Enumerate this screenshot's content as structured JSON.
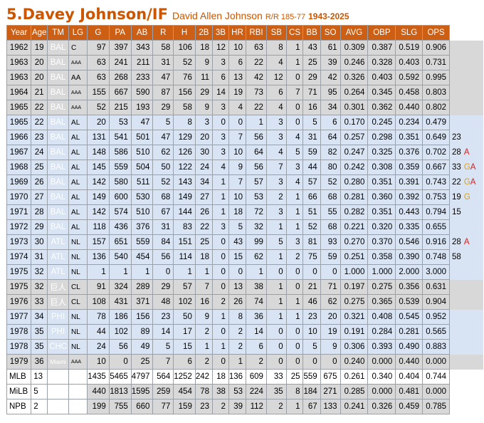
{
  "header": {
    "name": "5.Davey Johnson/IF",
    "full_name": "David Allen Johnson",
    "bats_throws": "R/R 185-77",
    "years": "1943-2025"
  },
  "columns": [
    "Year",
    "Age",
    "TM",
    "LG",
    "G",
    "PA",
    "AB",
    "R",
    "H",
    "2B",
    "3B",
    "HR",
    "RBI",
    "SB",
    "CS",
    "BB",
    "SO",
    "AVG",
    "OBP",
    "SLG",
    "OPS"
  ],
  "rows": [
    {
      "level": "milb",
      "year": "1962",
      "age": "19",
      "team": "BAL",
      "team_color": "BAL",
      "lg": "C",
      "lg_small": false,
      "stats": [
        "97",
        "397",
        "343",
        "58",
        "106",
        "18",
        "12",
        "10",
        "63",
        "8",
        "1",
        "43",
        "61",
        "0.309",
        "0.387",
        "0.519",
        "0.906"
      ],
      "note": "",
      "note_tag": "",
      "note_color": ""
    },
    {
      "level": "milb",
      "year": "1963",
      "age": "20",
      "team": "BAL",
      "team_color": "BAL",
      "lg": "AAA",
      "lg_small": true,
      "stats": [
        "63",
        "241",
        "211",
        "31",
        "52",
        "9",
        "3",
        "6",
        "22",
        "4",
        "1",
        "25",
        "39",
        "0.246",
        "0.328",
        "0.403",
        "0.731"
      ],
      "note": "",
      "note_tag": "",
      "note_color": ""
    },
    {
      "level": "milb",
      "year": "1963",
      "age": "20",
      "team": "BAL",
      "team_color": "BAL",
      "lg": "AA",
      "lg_small": false,
      "stats": [
        "63",
        "268",
        "233",
        "47",
        "76",
        "11",
        "6",
        "13",
        "42",
        "12",
        "0",
        "29",
        "42",
        "0.326",
        "0.403",
        "0.592",
        "0.995"
      ],
      "note": "",
      "note_tag": "",
      "note_color": ""
    },
    {
      "level": "milb",
      "year": "1964",
      "age": "21",
      "team": "BAL",
      "team_color": "BAL",
      "lg": "AAA",
      "lg_small": true,
      "stats": [
        "155",
        "667",
        "590",
        "87",
        "156",
        "29",
        "14",
        "19",
        "73",
        "6",
        "7",
        "71",
        "95",
        "0.264",
        "0.345",
        "0.458",
        "0.803"
      ],
      "note": "",
      "note_tag": "",
      "note_color": ""
    },
    {
      "level": "milb",
      "year": "1965",
      "age": "22",
      "team": "BAL",
      "team_color": "BAL",
      "lg": "AAA",
      "lg_small": true,
      "stats": [
        "52",
        "215",
        "193",
        "29",
        "58",
        "9",
        "3",
        "4",
        "22",
        "4",
        "0",
        "16",
        "34",
        "0.301",
        "0.362",
        "0.440",
        "0.802"
      ],
      "note": "",
      "note_tag": "",
      "note_color": ""
    },
    {
      "level": "mlb",
      "year": "1965",
      "age": "22",
      "team": "BAL",
      "team_color": "BAL",
      "lg": "AL",
      "lg_small": false,
      "stats": [
        "20",
        "53",
        "47",
        "5",
        "8",
        "3",
        "0",
        "0",
        "1",
        "3",
        "0",
        "5",
        "6",
        "0.170",
        "0.245",
        "0.234",
        "0.479"
      ],
      "note": "",
      "note_tag": "",
      "note_color": ""
    },
    {
      "level": "mlb",
      "year": "1966",
      "age": "23",
      "team": "BAL",
      "team_color": "BAL",
      "lg": "AL",
      "lg_small": false,
      "stats": [
        "131",
        "541",
        "501",
        "47",
        "129",
        "20",
        "3",
        "7",
        "56",
        "3",
        "4",
        "31",
        "64",
        "0.257",
        "0.298",
        "0.351",
        "0.649"
      ],
      "note": "23",
      "note_tag": "",
      "note_color": ""
    },
    {
      "level": "mlb",
      "year": "1967",
      "age": "24",
      "team": "BAL",
      "team_color": "BAL",
      "lg": "AL",
      "lg_small": false,
      "stats": [
        "148",
        "586",
        "510",
        "62",
        "126",
        "30",
        "3",
        "10",
        "64",
        "4",
        "5",
        "59",
        "82",
        "0.247",
        "0.325",
        "0.376",
        "0.702"
      ],
      "note": "28",
      "note_tag": "A",
      "note_color": "red"
    },
    {
      "level": "mlb",
      "year": "1968",
      "age": "25",
      "team": "BAL",
      "team_color": "BAL",
      "lg": "AL",
      "lg_small": false,
      "stats": [
        "145",
        "559",
        "504",
        "50",
        "122",
        "24",
        "4",
        "9",
        "56",
        "7",
        "3",
        "44",
        "80",
        "0.242",
        "0.308",
        "0.359",
        "0.667"
      ],
      "note": "33",
      "note_tag": "GA",
      "note_color": "mix"
    },
    {
      "level": "mlb",
      "year": "1969",
      "age": "26",
      "team": "BAL",
      "team_color": "BAL",
      "lg": "AL",
      "lg_small": false,
      "stats": [
        "142",
        "580",
        "511",
        "52",
        "143",
        "34",
        "1",
        "7",
        "57",
        "3",
        "4",
        "57",
        "52",
        "0.280",
        "0.351",
        "0.391",
        "0.743"
      ],
      "note": "22",
      "note_tag": "GA",
      "note_color": "mix"
    },
    {
      "level": "mlb",
      "year": "1970",
      "age": "27",
      "team": "BAL",
      "team_color": "BAL",
      "lg": "AL",
      "lg_small": false,
      "stats": [
        "149",
        "600",
        "530",
        "68",
        "149",
        "27",
        "1",
        "10",
        "53",
        "2",
        "1",
        "66",
        "68",
        "0.281",
        "0.360",
        "0.392",
        "0.753"
      ],
      "note": "19",
      "note_tag": "G",
      "note_color": "gold"
    },
    {
      "level": "mlb",
      "year": "1971",
      "age": "28",
      "team": "BAL",
      "team_color": "BAL",
      "lg": "AL",
      "lg_small": false,
      "stats": [
        "142",
        "574",
        "510",
        "67",
        "144",
        "26",
        "1",
        "18",
        "72",
        "3",
        "1",
        "51",
        "55",
        "0.282",
        "0.351",
        "0.443",
        "0.794"
      ],
      "note": "15",
      "note_tag": "",
      "note_color": ""
    },
    {
      "level": "mlb",
      "year": "1972",
      "age": "29",
      "team": "BAL",
      "team_color": "BAL",
      "lg": "AL",
      "lg_small": false,
      "stats": [
        "118",
        "436",
        "376",
        "31",
        "83",
        "22",
        "3",
        "5",
        "32",
        "1",
        "1",
        "52",
        "68",
        "0.221",
        "0.320",
        "0.335",
        "0.655"
      ],
      "note": "",
      "note_tag": "",
      "note_color": ""
    },
    {
      "level": "mlb",
      "year": "1973",
      "age": "30",
      "team": "ATL",
      "team_color": "ATL",
      "lg": "NL",
      "lg_small": false,
      "stats": [
        "157",
        "651",
        "559",
        "84",
        "151",
        "25",
        "0",
        "43",
        "99",
        "5",
        "3",
        "81",
        "93",
        "0.270",
        "0.370",
        "0.546",
        "0.916"
      ],
      "note": "28",
      "note_tag": "A",
      "note_color": "red"
    },
    {
      "level": "mlb",
      "year": "1974",
      "age": "31",
      "team": "ATL",
      "team_color": "ATL",
      "lg": "NL",
      "lg_small": false,
      "stats": [
        "136",
        "540",
        "454",
        "56",
        "114",
        "18",
        "0",
        "15",
        "62",
        "1",
        "2",
        "75",
        "59",
        "0.251",
        "0.358",
        "0.390",
        "0.748"
      ],
      "note": "58",
      "note_tag": "",
      "note_color": ""
    },
    {
      "level": "mlb",
      "year": "1975",
      "age": "32",
      "team": "ATL",
      "team_color": "ATL",
      "lg": "NL",
      "lg_small": false,
      "stats": [
        "1",
        "1",
        "1",
        "0",
        "1",
        "1",
        "0",
        "0",
        "1",
        "0",
        "0",
        "0",
        "0",
        "1.000",
        "1.000",
        "2.000",
        "3.000"
      ],
      "note": "",
      "note_tag": "",
      "note_color": ""
    },
    {
      "level": "npb",
      "year": "1975",
      "age": "32",
      "team": "巨人",
      "team_color": "JP",
      "lg": "CL",
      "lg_small": false,
      "stats": [
        "91",
        "324",
        "289",
        "29",
        "57",
        "7",
        "0",
        "13",
        "38",
        "1",
        "0",
        "21",
        "71",
        "0.197",
        "0.275",
        "0.356",
        "0.631"
      ],
      "note": "",
      "note_tag": "",
      "note_color": ""
    },
    {
      "level": "npb",
      "year": "1976",
      "age": "33",
      "team": "巨人",
      "team_color": "JP",
      "lg": "CL",
      "lg_small": false,
      "stats": [
        "108",
        "431",
        "371",
        "48",
        "102",
        "16",
        "2",
        "26",
        "74",
        "1",
        "1",
        "46",
        "62",
        "0.275",
        "0.365",
        "0.539",
        "0.904"
      ],
      "note": "",
      "note_tag": "",
      "note_color": ""
    },
    {
      "level": "mlb",
      "year": "1977",
      "age": "34",
      "team": "PHI",
      "team_color": "PHI",
      "lg": "NL",
      "lg_small": false,
      "stats": [
        "78",
        "186",
        "156",
        "23",
        "50",
        "9",
        "1",
        "8",
        "36",
        "1",
        "1",
        "23",
        "20",
        "0.321",
        "0.408",
        "0.545",
        "0.952"
      ],
      "note": "",
      "note_tag": "",
      "note_color": ""
    },
    {
      "level": "mlb",
      "year": "1978",
      "age": "35",
      "team": "PHI",
      "team_color": "PHI",
      "lg": "NL",
      "lg_small": false,
      "stats": [
        "44",
        "102",
        "89",
        "14",
        "17",
        "2",
        "0",
        "2",
        "14",
        "0",
        "0",
        "10",
        "19",
        "0.191",
        "0.284",
        "0.281",
        "0.565"
      ],
      "note": "",
      "note_tag": "",
      "note_color": ""
    },
    {
      "level": "mlb",
      "year": "1978",
      "age": "35",
      "team": "CHC",
      "team_color": "CHC",
      "lg": "NL",
      "lg_small": false,
      "stats": [
        "24",
        "56",
        "49",
        "5",
        "15",
        "1",
        "1",
        "2",
        "6",
        "0",
        "0",
        "5",
        "9",
        "0.306",
        "0.393",
        "0.490",
        "0.883"
      ],
      "note": "",
      "note_tag": "",
      "note_color": ""
    },
    {
      "level": "milb",
      "year": "1979",
      "age": "36",
      "team": "Miami",
      "team_color": "MIA",
      "lg": "AAA",
      "lg_small": true,
      "stats": [
        "10",
        "0",
        "25",
        "7",
        "6",
        "2",
        "0",
        "1",
        "2",
        "0",
        "0",
        "0",
        "0",
        "0.240",
        "0.000",
        "0.440",
        "0.000"
      ],
      "note": "",
      "note_tag": "",
      "note_color": ""
    }
  ],
  "totals": [
    {
      "label": "MLB",
      "count": "13",
      "shade": "wt",
      "stats": [
        "1435",
        "5465",
        "4797",
        "564",
        "1252",
        "242",
        "18",
        "136",
        "609",
        "33",
        "25",
        "559",
        "675",
        "0.261",
        "0.340",
        "0.404",
        "0.744"
      ]
    },
    {
      "label": "MiLB",
      "count": "5",
      "shade": "gry",
      "stats": [
        "440",
        "1813",
        "1595",
        "259",
        "454",
        "78",
        "38",
        "53",
        "224",
        "35",
        "8",
        "184",
        "271",
        "0.285",
        "0.000",
        "0.481",
        "0.000"
      ]
    },
    {
      "label": "NPB",
      "count": "2",
      "shade": "gry",
      "stats": [
        "199",
        "755",
        "660",
        "77",
        "159",
        "23",
        "2",
        "39",
        "112",
        "2",
        "1",
        "67",
        "133",
        "0.241",
        "0.326",
        "0.459",
        "0.785"
      ]
    }
  ]
}
